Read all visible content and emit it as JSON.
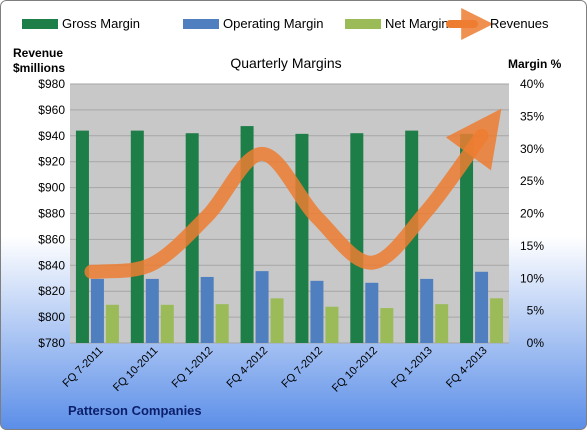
{
  "chart_data": {
    "type": "bar",
    "title": "Quarterly Margins",
    "company": "Patterson Companies",
    "y_left_label": [
      "Revenue",
      "$millions"
    ],
    "y_right_label": "Margin %",
    "y_left_range": [
      780,
      980
    ],
    "y_left_ticks": [
      "$780",
      "$800",
      "$820",
      "$840",
      "$860",
      "$880",
      "$900",
      "$920",
      "$940",
      "$960",
      "$980"
    ],
    "y_right_range": [
      0,
      40
    ],
    "y_right_ticks": [
      "0%",
      "5%",
      "10%",
      "15%",
      "20%",
      "25%",
      "30%",
      "35%",
      "40%"
    ],
    "categories": [
      "FQ 7-2011",
      "FQ 10-2011",
      "FQ 1-2012",
      "FQ 4-2012",
      "FQ 7-2012",
      "FQ 10-2012",
      "FQ 1-2013",
      "FQ 4-2013"
    ],
    "series": [
      {
        "name": "Gross Margin",
        "axis": "right",
        "kind": "bar",
        "color": "#1e7e48",
        "values": [
          32.8,
          32.8,
          32.4,
          33.5,
          32.3,
          32.4,
          32.8,
          32.3
        ]
      },
      {
        "name": "Operating Margin",
        "axis": "right",
        "kind": "bar",
        "color": "#4f7fbf",
        "values": [
          9.9,
          9.9,
          10.2,
          11.1,
          9.6,
          9.3,
          9.9,
          11.0
        ]
      },
      {
        "name": "Net Margin",
        "axis": "right",
        "kind": "bar",
        "color": "#9bbb59",
        "values": [
          5.9,
          5.9,
          6.0,
          6.9,
          5.6,
          5.4,
          6.0,
          6.9
        ]
      },
      {
        "name": "Revenues",
        "axis": "left",
        "kind": "line",
        "color": "#ed7d31",
        "values": [
          835,
          841,
          878,
          926,
          877,
          842,
          882,
          940
        ]
      }
    ],
    "grid": true,
    "legend": "top"
  }
}
